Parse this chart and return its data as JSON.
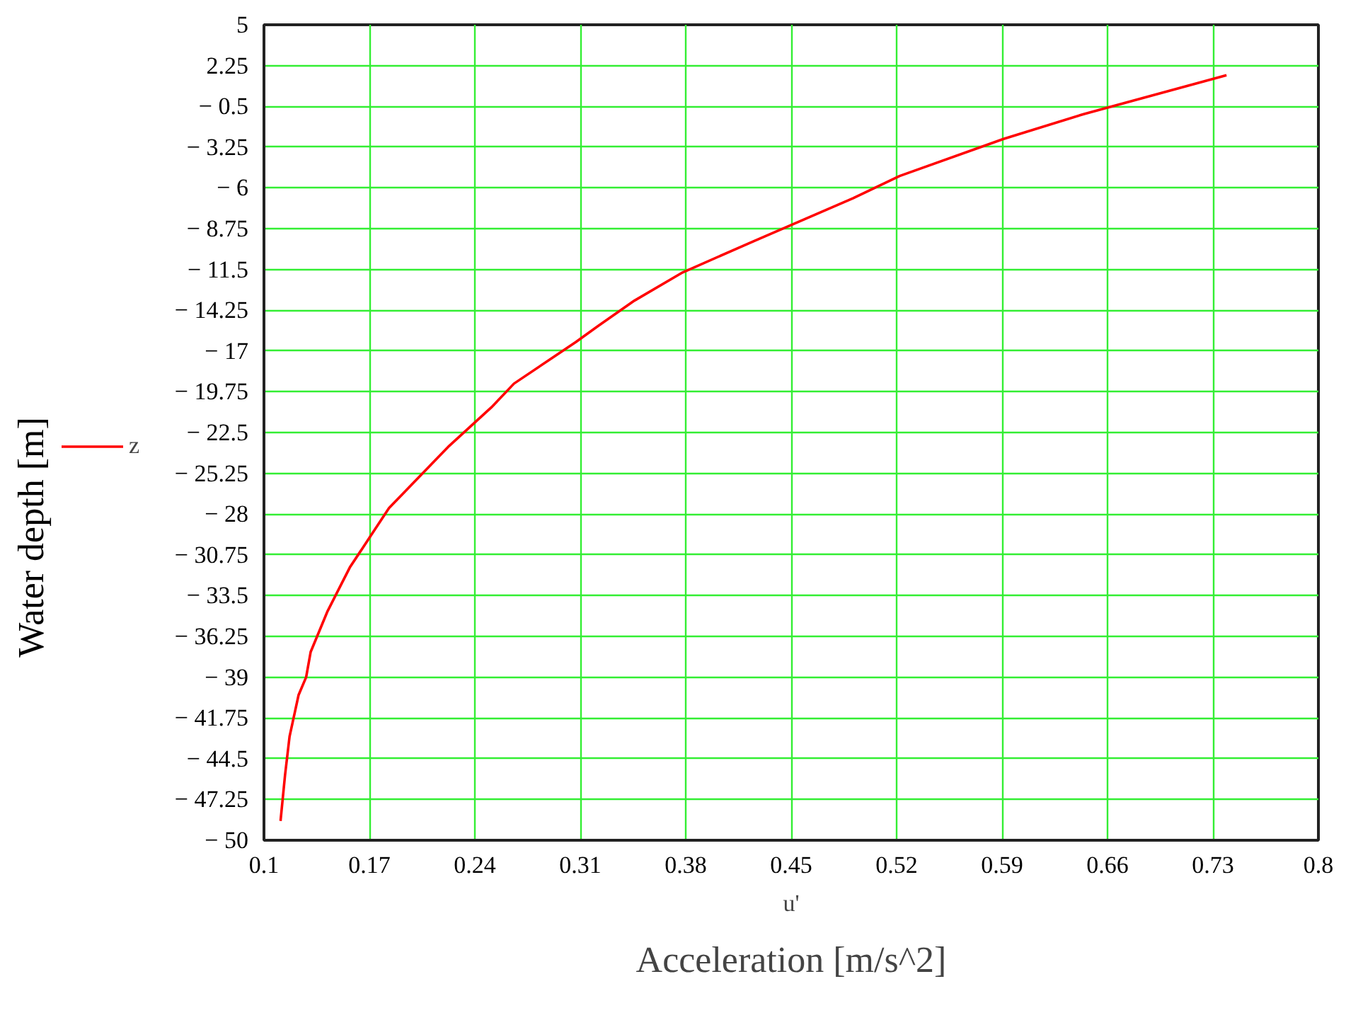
{
  "chart_data": {
    "type": "line",
    "xlabel": "Acceleration [m/s^2]",
    "ylabel": "Water depth [m]",
    "annotations": [
      "u'"
    ],
    "x": [
      0.739,
      0.645,
      0.591,
      0.522,
      0.491,
      0.425,
      0.378,
      0.346,
      0.322,
      0.307,
      0.266,
      0.251,
      0.223,
      0.183,
      0.157,
      0.142,
      0.131,
      0.128,
      0.123,
      0.117,
      0.114,
      0.111
    ],
    "series": [
      {
        "name": "z",
        "color": "#ff0000",
        "values": [
          1.6,
          -1.0,
          -2.7,
          -5.2,
          -6.7,
          -9.6,
          -11.7,
          -13.6,
          -15.3,
          -16.4,
          -19.2,
          -20.8,
          -23.4,
          -27.6,
          -31.6,
          -34.6,
          -37.3,
          -39.0,
          -40.2,
          -43.0,
          -45.6,
          -48.7
        ]
      }
    ],
    "xlim": [
      0.1,
      0.8
    ],
    "xticks": [
      0.1,
      0.17,
      0.24,
      0.31,
      0.38,
      0.45,
      0.52,
      0.59,
      0.66,
      0.73,
      0.8
    ],
    "ylim": [
      -50,
      5
    ],
    "yticks": [
      5,
      2.25,
      {
        "value": -0.5,
        "label": "− 0.5"
      },
      {
        "value": -3.25,
        "label": "− 3.25"
      },
      {
        "value": -6,
        "label": "− 6"
      },
      {
        "value": -8.75,
        "label": "− 8.75"
      },
      {
        "value": -11.5,
        "label": "− 11.5"
      },
      {
        "value": -14.25,
        "label": "− 14.25"
      },
      {
        "value": -17,
        "label": "− 17"
      },
      {
        "value": -19.75,
        "label": "− 19.75"
      },
      {
        "value": -22.5,
        "label": "− 22.5"
      },
      {
        "value": -25.25,
        "label": "− 25.25"
      },
      {
        "value": -28,
        "label": "− 28"
      },
      {
        "value": -30.75,
        "label": "− 30.75"
      },
      {
        "value": -33.5,
        "label": "− 33.5"
      },
      {
        "value": -36.25,
        "label": "− 36.25"
      },
      {
        "value": -39,
        "label": "− 39"
      },
      {
        "value": -41.75,
        "label": "− 41.75"
      },
      {
        "value": -44.5,
        "label": "− 44.5"
      },
      {
        "value": -47.25,
        "label": "− 47.25"
      },
      {
        "value": -50,
        "label": "− 50"
      }
    ],
    "grid": true,
    "legend": "left",
    "line_style": "solid",
    "marker": "none"
  }
}
